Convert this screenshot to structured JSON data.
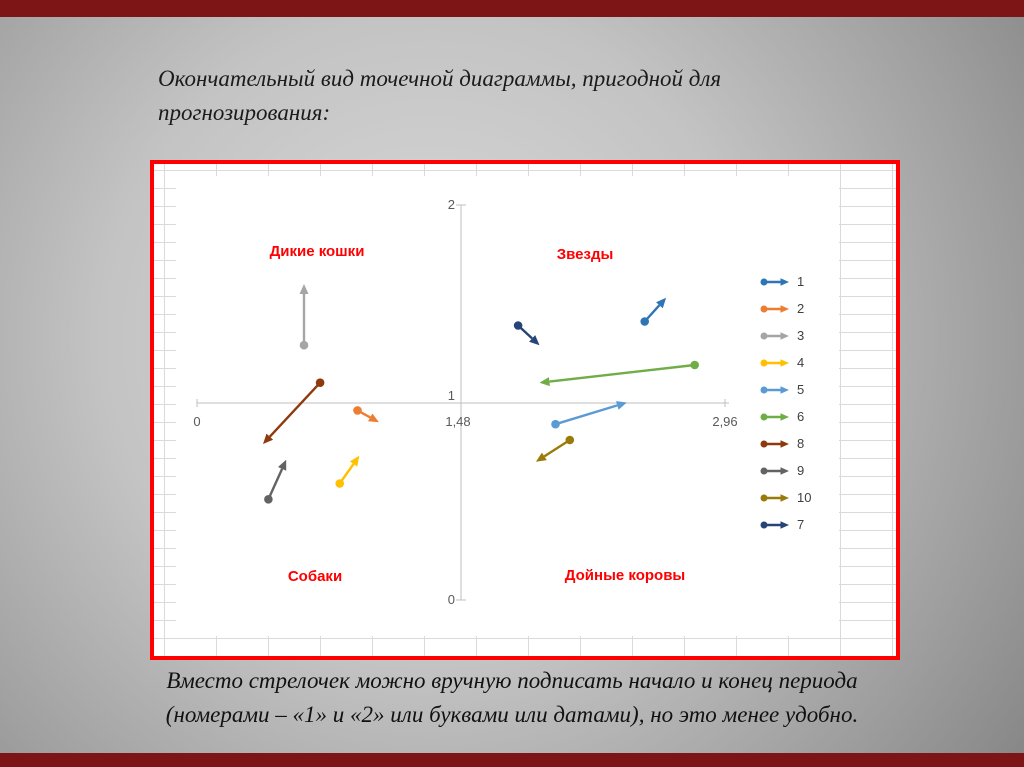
{
  "slide": {
    "title_line1": "Окончательный вид точечной диаграммы, пригодной для",
    "title_line2": "прогнозирования:",
    "footer_line1": "Вместо стрелочек можно вручную подписать начало и конец периода",
    "footer_line2": "(номерами – «1» и «2» или буквами или датами), но это менее удобно."
  },
  "colors": {
    "accent_bar": "#7d1517",
    "chart_border": "#fe0000",
    "quadrant_label": "#ff0000",
    "axis": "#bfbfbf"
  },
  "chart_data": {
    "type": "scatter",
    "title": "",
    "xlabel": "",
    "ylabel": "",
    "xlim": [
      0,
      2.96
    ],
    "ylim": [
      0,
      2
    ],
    "grid": false,
    "legend_position": "right",
    "axis": {
      "y_top": "2",
      "y_mid": "1",
      "y_bottom": "0",
      "x_left": "0",
      "x_mid": "1,48",
      "x_right": "2,96"
    },
    "quadrants": {
      "top_left": "Дикие кошки",
      "top_right": "Звезды",
      "bottom_left": "Собаки",
      "bottom_right": "Дойные коровы"
    },
    "series": [
      {
        "name": "1",
        "color": "#2E75B6",
        "start": [
          2.51,
          1.41
        ],
        "end": [
          2.63,
          1.53
        ]
      },
      {
        "name": "2",
        "color": "#ED7D31",
        "start": [
          0.9,
          0.96
        ],
        "end": [
          1.02,
          0.9
        ]
      },
      {
        "name": "3",
        "color": "#A5A5A5",
        "start": [
          0.6,
          1.29
        ],
        "end": [
          0.6,
          1.6
        ]
      },
      {
        "name": "4",
        "color": "#FFC000",
        "start": [
          0.8,
          0.59
        ],
        "end": [
          0.91,
          0.73
        ]
      },
      {
        "name": "5",
        "color": "#5B9BD5",
        "start": [
          2.01,
          0.89
        ],
        "end": [
          2.41,
          1.0
        ]
      },
      {
        "name": "6",
        "color": "#70AD47",
        "start": [
          2.79,
          1.19
        ],
        "end": [
          1.92,
          1.1
        ]
      },
      {
        "name": "8",
        "color": "#8F3A0E",
        "start": [
          0.69,
          1.1
        ],
        "end": [
          0.37,
          0.79
        ]
      },
      {
        "name": "9",
        "color": "#636363",
        "start": [
          0.4,
          0.51
        ],
        "end": [
          0.5,
          0.71
        ]
      },
      {
        "name": "10",
        "color": "#9A7B0A",
        "start": [
          2.09,
          0.81
        ],
        "end": [
          1.9,
          0.7
        ]
      },
      {
        "name": "7",
        "color": "#264478",
        "start": [
          1.8,
          1.39
        ],
        "end": [
          1.92,
          1.29
        ]
      }
    ]
  }
}
